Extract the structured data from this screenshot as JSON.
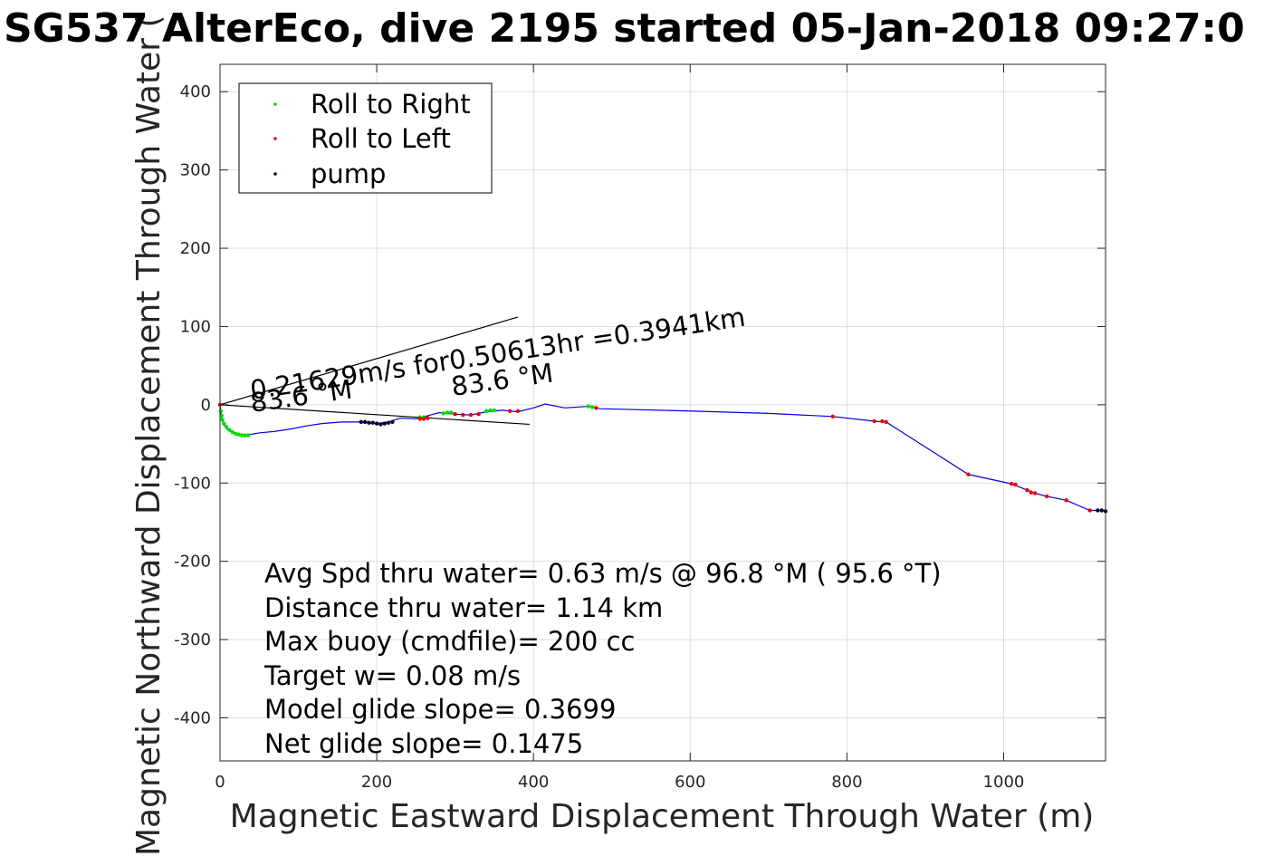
{
  "chart_data": {
    "type": "line",
    "title": "SG537 AlterEco, dive 2195 started 05-Jan-2018 09:27:0",
    "xlabel": "Magnetic Eastward Displacement Through Water (m)",
    "ylabel": "Magnetic Northward Displacement Through Water (",
    "xlim": [
      0,
      1130
    ],
    "ylim": [
      -455,
      435
    ],
    "xticks": [
      0,
      200,
      400,
      600,
      800,
      1000
    ],
    "yticks": [
      -400,
      -300,
      -200,
      -100,
      0,
      100,
      200,
      300,
      400
    ],
    "xtick_labels": [
      "0",
      "200",
      "400",
      "600",
      "800",
      "1000"
    ],
    "ytick_labels": [
      "-400",
      "-300",
      "-200",
      "-100",
      "0",
      "100",
      "200",
      "300",
      "400"
    ],
    "grid": true,
    "legend_position": "top-left",
    "legend": [
      {
        "label": "Roll to Right",
        "color": "#00dd00"
      },
      {
        "label": "Roll to Left",
        "color": "#ee0000"
      },
      {
        "label": "pump",
        "color": "#000033"
      }
    ],
    "track_color": "#0000ee",
    "track": {
      "x": [
        0,
        1,
        2,
        4,
        8,
        15,
        22,
        30,
        38,
        50,
        70,
        90,
        110,
        130,
        155,
        180,
        200,
        215,
        230,
        250,
        265,
        280,
        300,
        320,
        340,
        360,
        380,
        400,
        415,
        440,
        470,
        485,
        600,
        700,
        782,
        835,
        850,
        955,
        1010,
        1030,
        1040,
        1055,
        1080,
        1110,
        1130
      ],
      "y": [
        0,
        -8,
        -16,
        -24,
        -30,
        -35,
        -38,
        -39,
        -38,
        -36,
        -34,
        -31,
        -27,
        -24,
        -22,
        -22,
        -24,
        -22,
        -17,
        -18,
        -14,
        -10,
        -12,
        -13,
        -9,
        -7,
        -9,
        -4,
        1,
        -4,
        -2,
        -5,
        -8,
        -11,
        -15,
        -21,
        -22,
        -89,
        -101,
        -109,
        -113,
        -117,
        -122,
        -135,
        -135
      ]
    },
    "roll_right": {
      "x": [
        1,
        2,
        3,
        5,
        8,
        12,
        16,
        20,
        24,
        28,
        32,
        36,
        255,
        260,
        285,
        290,
        295,
        340,
        345,
        350,
        470,
        475
      ],
      "y": [
        -8,
        -14,
        -19,
        -24,
        -28,
        -32,
        -35,
        -37,
        -38,
        -39,
        -39,
        -39,
        -16,
        -16,
        -11,
        -10,
        -10,
        -8,
        -7,
        -7,
        -2,
        -3
      ]
    },
    "roll_left": {
      "x": [
        0,
        255,
        260,
        265,
        300,
        310,
        320,
        330,
        370,
        380,
        480,
        782,
        835,
        845,
        850,
        955,
        1010,
        1015,
        1030,
        1035,
        1040,
        1055,
        1080,
        1110
      ],
      "y": [
        0,
        -18,
        -18,
        -17,
        -12,
        -13,
        -13,
        -12,
        -8,
        -8,
        -4,
        -15,
        -21,
        -21,
        -22,
        -89,
        -101,
        -102,
        -109,
        -112,
        -113,
        -117,
        -122,
        -135
      ]
    },
    "pump": {
      "x": [
        180,
        185,
        190,
        195,
        200,
        205,
        210,
        215,
        220,
        1120,
        1125,
        1130
      ],
      "y": [
        -22,
        -22,
        -23,
        -23,
        -24,
        -25,
        -24,
        -23,
        -22,
        -135,
        -135,
        -136
      ]
    },
    "heading_lines": [
      {
        "x": [
          0,
          380
        ],
        "y": [
          0,
          112
        ]
      },
      {
        "x": [
          0,
          395
        ],
        "y": [
          0,
          -25
        ]
      }
    ],
    "annotations": {
      "speed_line": "0.21629m/s for0.50613hr =0.3941km",
      "heading_label_1": "83.6 °M",
      "heading_label_2": "83.6 °M"
    },
    "stats": [
      "Avg Spd thru water=  0.63 m/s @  96.8 °M ( 95.6 °T)",
      "Distance thru water=  1.14 km",
      "Max buoy (cmdfile)= 200 cc",
      "Target w= 0.08 m/s",
      "Model glide slope= 0.3699",
      "Net glide slope= 0.1475"
    ]
  }
}
